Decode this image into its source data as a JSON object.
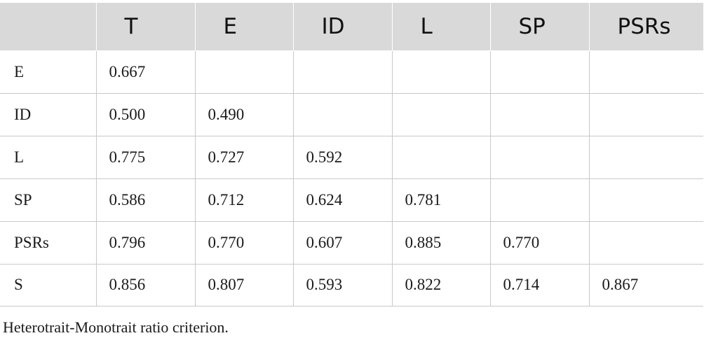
{
  "table": {
    "columns": [
      "",
      "T",
      "E",
      "ID",
      "L",
      "SP",
      "PSRs"
    ],
    "rows": [
      {
        "label": "E",
        "cells": [
          "0.667",
          "",
          "",
          "",
          "",
          ""
        ]
      },
      {
        "label": "ID",
        "cells": [
          "0.500",
          "0.490",
          "",
          "",
          "",
          ""
        ]
      },
      {
        "label": "L",
        "cells": [
          "0.775",
          "0.727",
          "0.592",
          "",
          "",
          ""
        ]
      },
      {
        "label": "SP",
        "cells": [
          "0.586",
          "0.712",
          "0.624",
          "0.781",
          "",
          ""
        ]
      },
      {
        "label": "PSRs",
        "cells": [
          "0.796",
          "0.770",
          "0.607",
          "0.885",
          "0.770",
          ""
        ]
      },
      {
        "label": "S",
        "cells": [
          "0.856",
          "0.807",
          "0.593",
          "0.822",
          "0.714",
          "0.867"
        ]
      }
    ]
  },
  "caption": "Heterotrait-Monotrait ratio criterion.",
  "colors": {
    "header_bg": "#d9d9d9",
    "grid_line": "#c8c8c8",
    "text": "#1a1a1a"
  }
}
